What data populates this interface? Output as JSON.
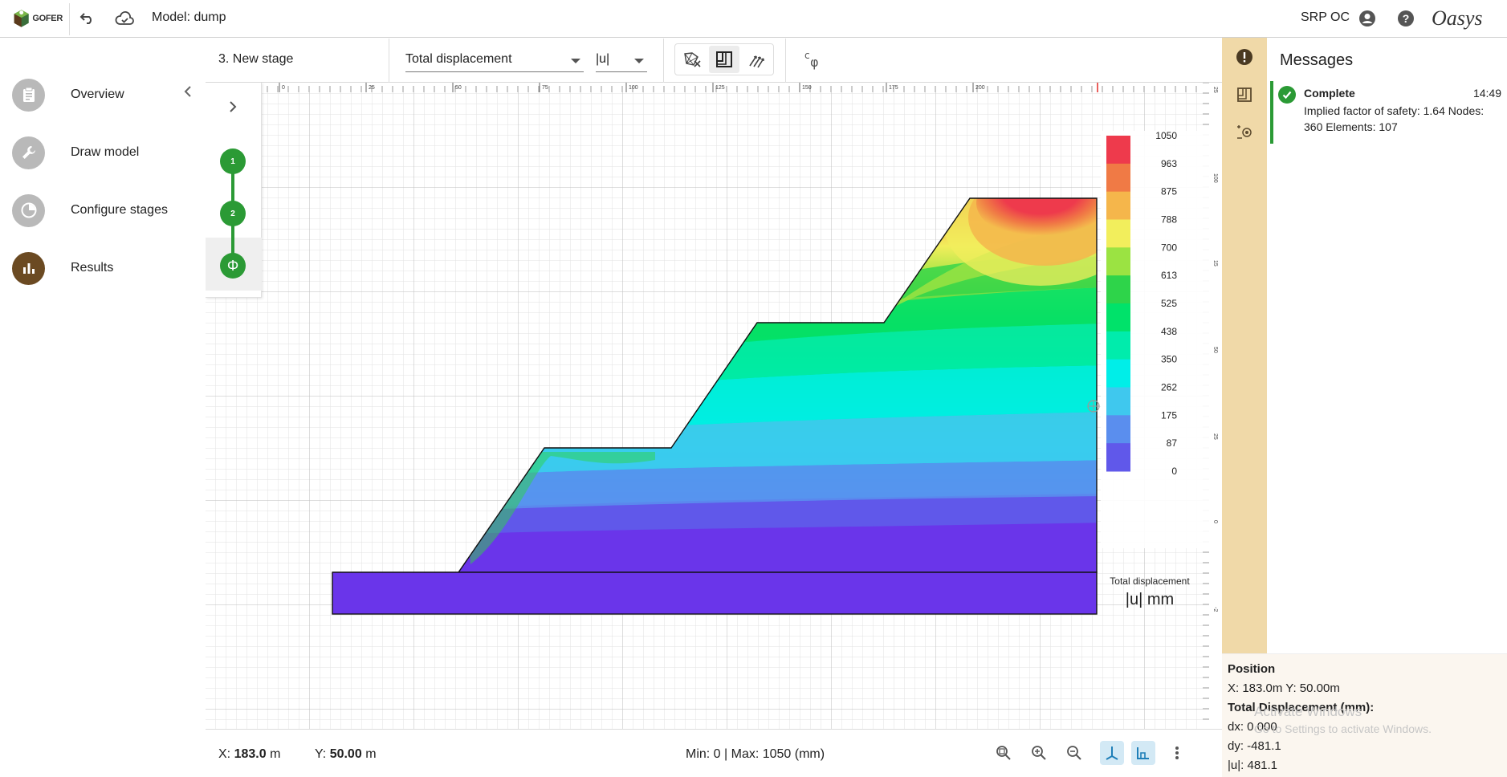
{
  "app": {
    "logo_text": "GOFER",
    "model_title": "Model: dump",
    "user": "SRP OC",
    "brand": "Oasys"
  },
  "nav": {
    "items": [
      {
        "label": "Overview",
        "icon": "clipboard-icon"
      },
      {
        "label": "Draw model",
        "icon": "wrench-icon"
      },
      {
        "label": "Configure stages",
        "icon": "pie-clock-icon"
      },
      {
        "label": "Results",
        "icon": "bar-chart-icon",
        "active": true
      }
    ]
  },
  "toolbar": {
    "stage_name": "3. New stage",
    "result_type": "Total displacement",
    "component": "|u|",
    "cphi_label": "cφ"
  },
  "stages": [
    {
      "label": "1"
    },
    {
      "label": "2"
    },
    {
      "label": "Φ"
    }
  ],
  "ruler": {
    "top_ticks": [
      "0",
      "25",
      "50",
      "75",
      "100",
      "125",
      "150",
      "175",
      "200"
    ],
    "side_ticks": [
      "25",
      "100",
      "15",
      "50",
      "25",
      "0",
      "-2"
    ]
  },
  "legend": {
    "values": [
      "1050",
      "963",
      "875",
      "788",
      "700",
      "613",
      "525",
      "438",
      "350",
      "262",
      "175",
      "87",
      "0"
    ],
    "colors": [
      "#ee3a4c",
      "#f07a45",
      "#f5b64b",
      "#f2ee5c",
      "#9be342",
      "#2ed44a",
      "#00e26a",
      "#00ecac",
      "#00eee8",
      "#3fc8ee",
      "#5a8eee",
      "#6058ea",
      "#6a35ea"
    ],
    "title": "Total displacement",
    "unit": "|u| mm"
  },
  "status": {
    "x_label": "X:",
    "x_value": "183.0",
    "x_unit": "m",
    "y_label": "Y:",
    "y_value": "50.00",
    "y_unit": "m",
    "minmax": "Min: 0 | Max: 1050 (mm)"
  },
  "messages": {
    "title": "Messages",
    "items": [
      {
        "status": "Complete",
        "time": "14:49",
        "body": "Implied factor of safety: 1.64 Nodes: 360 Elements: 107"
      }
    ]
  },
  "position": {
    "title": "Position",
    "xy": "X: 183.0m Y: 50.00m",
    "disp_title": "Total Displacement (mm):",
    "dx": "dx: 0.000",
    "dy": "dy: -481.1",
    "u": "|u|: 481.1"
  },
  "watermark": {
    "line1": "Activate Windows",
    "line2": "Go to Settings to activate Windows."
  }
}
